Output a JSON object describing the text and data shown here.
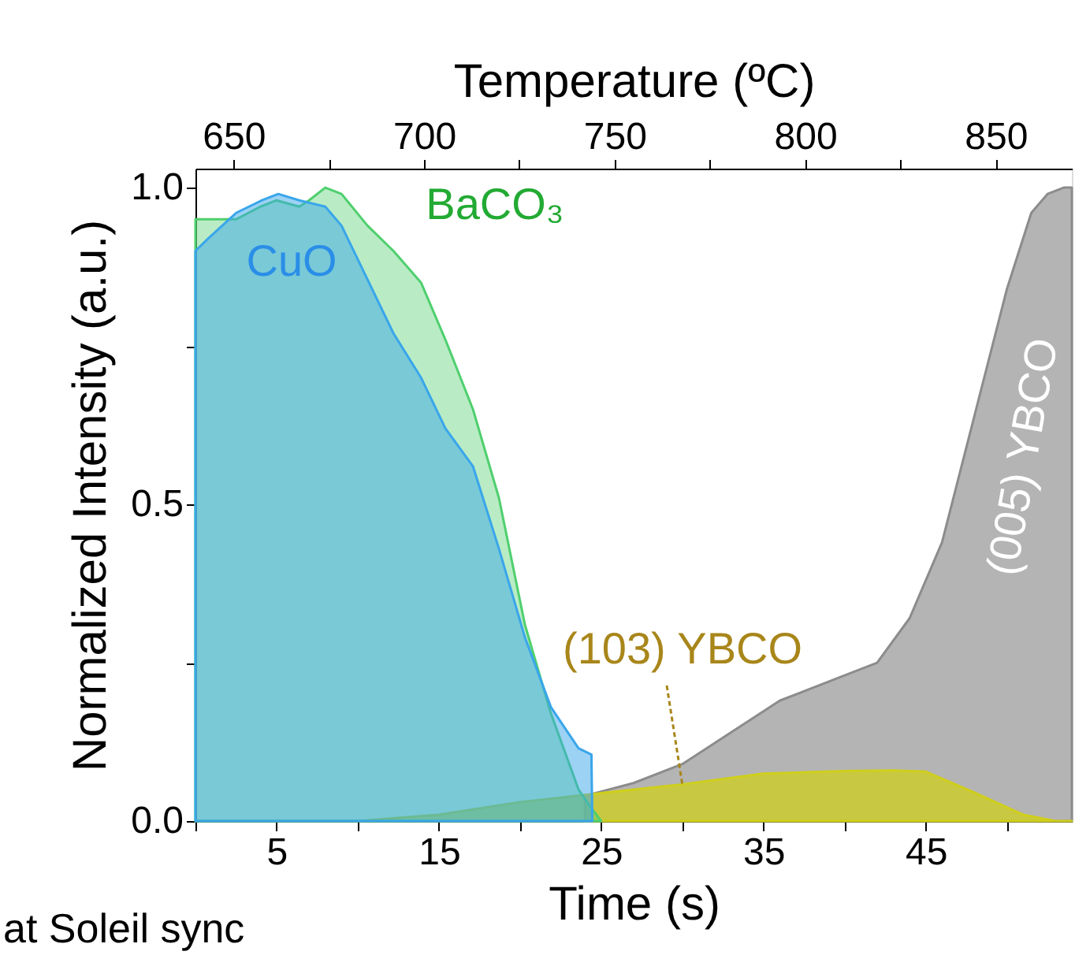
{
  "chart_data": {
    "type": "area",
    "xlabel": "Time (s)",
    "ylabel": "Normalized Intensity (a.u.)",
    "x2label": "Temperature (ºC)",
    "xlim": [
      0,
      54
    ],
    "xticks": [
      {
        "value": 0,
        "label": null
      },
      5,
      {
        "value": 10,
        "label": null
      },
      15,
      {
        "value": 20,
        "label": null
      },
      25,
      {
        "value": 30,
        "label": null
      },
      35,
      {
        "value": 40,
        "label": null
      },
      45,
      {
        "value": 50,
        "label": null
      }
    ],
    "x2lim": [
      640,
      870
    ],
    "x2ticks": [
      650,
      {
        "value": 675,
        "label": null
      },
      700,
      {
        "value": 725,
        "label": null
      },
      750,
      {
        "value": 775,
        "label": null
      },
      800,
      {
        "value": 825,
        "label": null
      },
      850
    ],
    "ylim": [
      0,
      1.03
    ],
    "yticks": [
      {
        "value": 0,
        "label": "0.0"
      },
      {
        "value": 0.25,
        "label": null
      },
      {
        "value": 0.5,
        "label": "0.5"
      },
      {
        "value": 0.75,
        "label": null
      },
      {
        "value": 1,
        "label": "1.0"
      }
    ],
    "grid": false,
    "legend": false,
    "annotations": [
      "at Soleil sync"
    ],
    "series": [
      {
        "name": "(005) YBCO",
        "color": "#8c8c8c",
        "x": [
          24,
          27,
          30,
          33,
          36,
          40,
          42,
          44,
          46,
          48,
          50,
          51.5,
          52.5,
          53.5,
          54
        ],
        "values": [
          0.04,
          0.06,
          0.09,
          0.14,
          0.19,
          0.23,
          0.25,
          0.32,
          0.44,
          0.64,
          0.84,
          0.96,
          0.99,
          1.0,
          1.0
        ]
      },
      {
        "name": "(103) YBCO",
        "color": "#cfcf1c",
        "x": [
          0,
          10,
          15,
          20,
          24.6,
          30,
          35,
          40,
          43,
          45,
          48,
          51,
          53,
          54
        ],
        "values": [
          0,
          0,
          0.01,
          0.03,
          0.043,
          0.058,
          0.075,
          0.079,
          0.08,
          0.078,
          0.045,
          0.01,
          0,
          0
        ]
      },
      {
        "name": "BaCO₃",
        "color": "#4fcf6e",
        "x": [
          0,
          2.5,
          4,
          5,
          6.4,
          7,
          8,
          9,
          10.6,
          12.2,
          13.9,
          15.4,
          17.1,
          18.7,
          20.3,
          21.9,
          23.6,
          24.4,
          25
        ],
        "values": [
          0.95,
          0.95,
          0.97,
          0.98,
          0.97,
          0.98,
          1.0,
          0.99,
          0.94,
          0.9,
          0.85,
          0.76,
          0.65,
          0.51,
          0.31,
          0.17,
          0.05,
          0.02,
          0
        ]
      },
      {
        "name": "CuO",
        "color": "#3aa6ea",
        "x": [
          0,
          0.8,
          2.5,
          4.1,
          5.1,
          6.4,
          8,
          9,
          10.6,
          12.2,
          13.9,
          15.4,
          17.1,
          18.7,
          20.3,
          21.9,
          23.6,
          24.4,
          24.45
        ],
        "values": [
          0.9,
          0.92,
          0.96,
          0.98,
          0.99,
          0.98,
          0.97,
          0.94,
          0.855,
          0.77,
          0.7,
          0.62,
          0.56,
          0.43,
          0.29,
          0.18,
          0.115,
          0.105,
          0
        ]
      }
    ]
  }
}
